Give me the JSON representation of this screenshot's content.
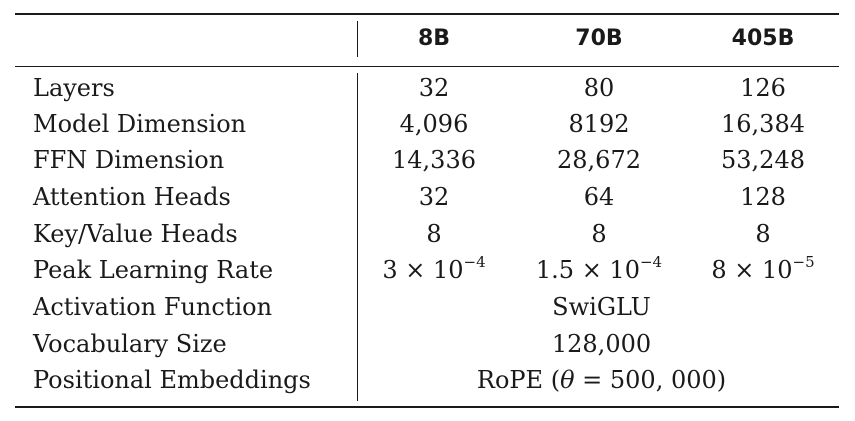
{
  "table": {
    "columns": [
      "8B",
      "70B",
      "405B"
    ],
    "rows": [
      {
        "label": "Layers",
        "values": [
          "32",
          "80",
          "126"
        ]
      },
      {
        "label": "Model Dimension",
        "values": [
          "4,096",
          "8192",
          "16,384"
        ]
      },
      {
        "label": "FFN Dimension",
        "values": [
          "14,336",
          "28,672",
          "53,248"
        ]
      },
      {
        "label": "Attention Heads",
        "values": [
          "32",
          "64",
          "128"
        ]
      },
      {
        "label": "Key/Value Heads",
        "values": [
          "8",
          "8",
          "8"
        ]
      },
      {
        "label": "Peak Learning Rate",
        "values": [
          {
            "mantissa": "3 × 10",
            "exponent": "−4"
          },
          {
            "mantissa": "1.5 × 10",
            "exponent": "−4"
          },
          {
            "mantissa": "8 × 10",
            "exponent": "−5"
          }
        ]
      },
      {
        "label": "Activation Function",
        "span_value": "SwiGLU"
      },
      {
        "label": "Vocabulary Size",
        "span_value": "128,000"
      },
      {
        "label": "Positional Embeddings",
        "span_value": {
          "prefix": "RoPE (",
          "symbol": "θ",
          "suffix": " = 500, 000)"
        }
      }
    ]
  }
}
